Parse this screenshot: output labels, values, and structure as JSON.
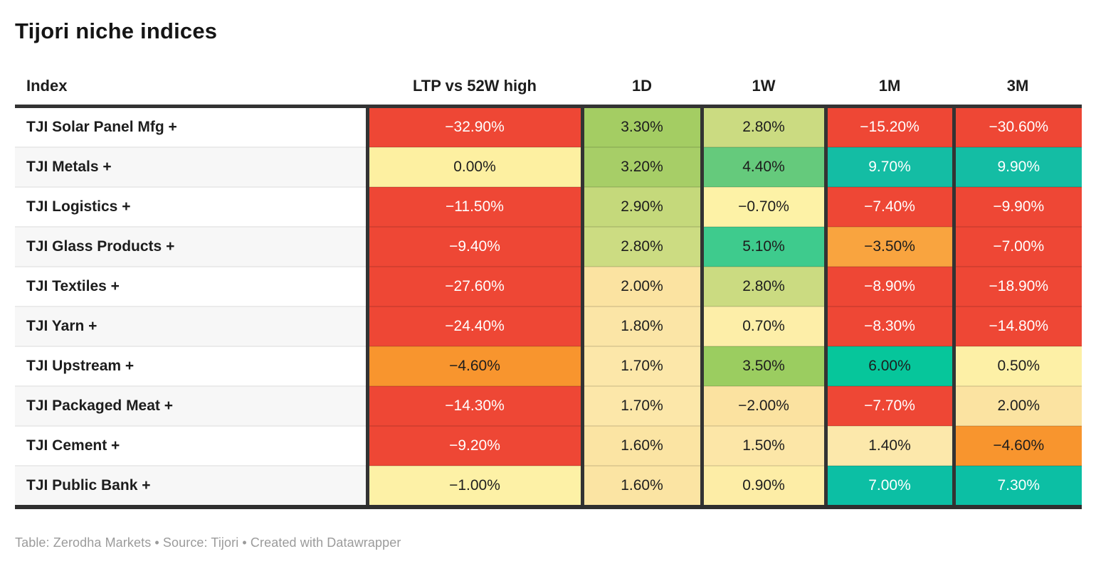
{
  "title": "Tijori niche indices",
  "footer": "Table: Zerodha Markets • Source: Tijori • Created with Datawrapper",
  "colors": {
    "dark_text": "#1d1d1d",
    "white_text": "#ffffff",
    "negative_red": "#ee4735",
    "teal_positive": "#0ebfa4",
    "border_dark": "#333333"
  },
  "table": {
    "columns": [
      "Index",
      "LTP vs 52W high",
      "1D",
      "1W",
      "1M",
      "3M"
    ],
    "rows": [
      {
        "index": "TJI Solar Panel Mfg +",
        "cells": [
          {
            "v": "−32.90%",
            "bg": "#ee4735",
            "fg": "#ffffff"
          },
          {
            "v": "3.30%",
            "bg": "#a4cd63",
            "fg": "#1d1d1d"
          },
          {
            "v": "2.80%",
            "bg": "#cbdb81",
            "fg": "#1d1d1d"
          },
          {
            "v": "−15.20%",
            "bg": "#ee4735",
            "fg": "#ffffff"
          },
          {
            "v": "−30.60%",
            "bg": "#ee4735",
            "fg": "#ffffff"
          }
        ]
      },
      {
        "index": "TJI Metals +",
        "cells": [
          {
            "v": "0.00%",
            "bg": "#fdf0a1",
            "fg": "#1d1d1d"
          },
          {
            "v": "3.20%",
            "bg": "#a7ce67",
            "fg": "#1d1d1d"
          },
          {
            "v": "4.40%",
            "bg": "#65ca7c",
            "fg": "#1d1d1d"
          },
          {
            "v": "9.70%",
            "bg": "#14bda4",
            "fg": "#ffffff"
          },
          {
            "v": "9.90%",
            "bg": "#14bda4",
            "fg": "#ffffff"
          }
        ]
      },
      {
        "index": "TJI Logistics +",
        "cells": [
          {
            "v": "−11.50%",
            "bg": "#ee4735",
            "fg": "#ffffff"
          },
          {
            "v": "2.90%",
            "bg": "#c5d97b",
            "fg": "#1d1d1d"
          },
          {
            "v": "−0.70%",
            "bg": "#fdf2a6",
            "fg": "#1d1d1d"
          },
          {
            "v": "−7.40%",
            "bg": "#ee4735",
            "fg": "#ffffff"
          },
          {
            "v": "−9.90%",
            "bg": "#ee4735",
            "fg": "#ffffff"
          }
        ]
      },
      {
        "index": "TJI Glass Products +",
        "cells": [
          {
            "v": "−9.40%",
            "bg": "#ee4735",
            "fg": "#ffffff"
          },
          {
            "v": "2.80%",
            "bg": "#ccdc82",
            "fg": "#1d1d1d"
          },
          {
            "v": "5.10%",
            "bg": "#3ecb8d",
            "fg": "#1d1d1d"
          },
          {
            "v": "−3.50%",
            "bg": "#f9a43f",
            "fg": "#1d1d1d"
          },
          {
            "v": "−7.00%",
            "bg": "#ee4735",
            "fg": "#ffffff"
          }
        ]
      },
      {
        "index": "TJI Textiles +",
        "cells": [
          {
            "v": "−27.60%",
            "bg": "#ee4735",
            "fg": "#ffffff"
          },
          {
            "v": "2.00%",
            "bg": "#fbe3a1",
            "fg": "#1d1d1d"
          },
          {
            "v": "2.80%",
            "bg": "#cbdb81",
            "fg": "#1d1d1d"
          },
          {
            "v": "−8.90%",
            "bg": "#ee4735",
            "fg": "#ffffff"
          },
          {
            "v": "−18.90%",
            "bg": "#ee4735",
            "fg": "#ffffff"
          }
        ]
      },
      {
        "index": "TJI Yarn +",
        "cells": [
          {
            "v": "−24.40%",
            "bg": "#ee4735",
            "fg": "#ffffff"
          },
          {
            "v": "1.80%",
            "bg": "#fbe5a6",
            "fg": "#1d1d1d"
          },
          {
            "v": "0.70%",
            "bg": "#fdeea8",
            "fg": "#1d1d1d"
          },
          {
            "v": "−8.30%",
            "bg": "#ee4735",
            "fg": "#ffffff"
          },
          {
            "v": "−14.80%",
            "bg": "#ee4735",
            "fg": "#ffffff"
          }
        ]
      },
      {
        "index": "TJI Upstream +",
        "cells": [
          {
            "v": "−4.60%",
            "bg": "#f8952e",
            "fg": "#1d1d1d"
          },
          {
            "v": "1.70%",
            "bg": "#fce7a9",
            "fg": "#1d1d1d"
          },
          {
            "v": "3.50%",
            "bg": "#9bcd60",
            "fg": "#1d1d1d"
          },
          {
            "v": "6.00%",
            "bg": "#06c69b",
            "fg": "#1d1d1d"
          },
          {
            "v": "0.50%",
            "bg": "#fdf0a6",
            "fg": "#1d1d1d"
          }
        ]
      },
      {
        "index": "TJI Packaged Meat +",
        "cells": [
          {
            "v": "−14.30%",
            "bg": "#ee4735",
            "fg": "#ffffff"
          },
          {
            "v": "1.70%",
            "bg": "#fce7a9",
            "fg": "#1d1d1d"
          },
          {
            "v": "−2.00%",
            "bg": "#fbe2a0",
            "fg": "#1d1d1d"
          },
          {
            "v": "−7.70%",
            "bg": "#ee4735",
            "fg": "#ffffff"
          },
          {
            "v": "2.00%",
            "bg": "#fbe3a1",
            "fg": "#1d1d1d"
          }
        ]
      },
      {
        "index": "TJI Cement +",
        "cells": [
          {
            "v": "−9.20%",
            "bg": "#ee4735",
            "fg": "#ffffff"
          },
          {
            "v": "1.60%",
            "bg": "#fbe4a3",
            "fg": "#1d1d1d"
          },
          {
            "v": "1.50%",
            "bg": "#fce6a7",
            "fg": "#1d1d1d"
          },
          {
            "v": "1.40%",
            "bg": "#fce8ab",
            "fg": "#1d1d1d"
          },
          {
            "v": "−4.60%",
            "bg": "#f8952e",
            "fg": "#1d1d1d"
          }
        ]
      },
      {
        "index": "TJI Public Bank +",
        "cells": [
          {
            "v": "−1.00%",
            "bg": "#fdf1a6",
            "fg": "#1d1d1d"
          },
          {
            "v": "1.60%",
            "bg": "#fbe4a3",
            "fg": "#1d1d1d"
          },
          {
            "v": "0.90%",
            "bg": "#fdeda6",
            "fg": "#1d1d1d"
          },
          {
            "v": "7.00%",
            "bg": "#0cbfa4",
            "fg": "#ffffff"
          },
          {
            "v": "7.30%",
            "bg": "#0cbfa4",
            "fg": "#ffffff"
          }
        ]
      }
    ]
  }
}
